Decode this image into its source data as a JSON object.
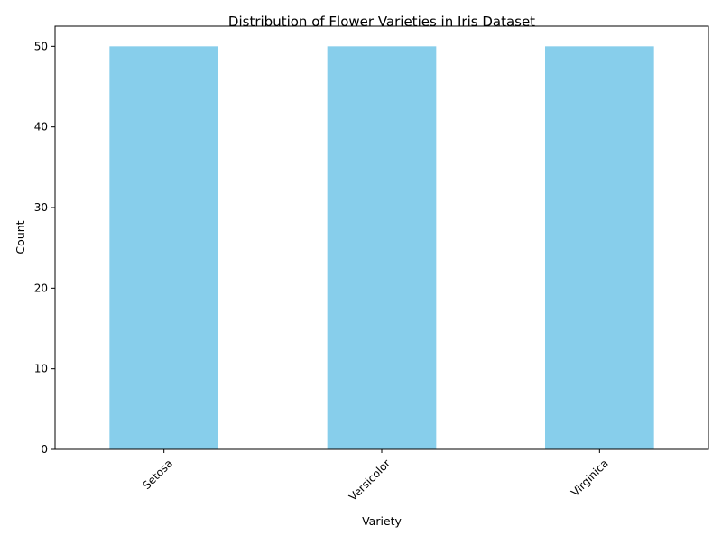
{
  "chart_data": {
    "type": "bar",
    "title": "Distribution of Flower Varieties in Iris Dataset",
    "xlabel": "Variety",
    "ylabel": "Count",
    "categories": [
      "Setosa",
      "Versicolor",
      "Virginica"
    ],
    "values": [
      50,
      50,
      50
    ],
    "ylim": [
      0,
      52.5
    ],
    "yticks": [
      0,
      10,
      20,
      30,
      40,
      50
    ],
    "bar_color": "#87CEEB",
    "grid": false,
    "legend": "none",
    "xtick_rotation": 45
  }
}
